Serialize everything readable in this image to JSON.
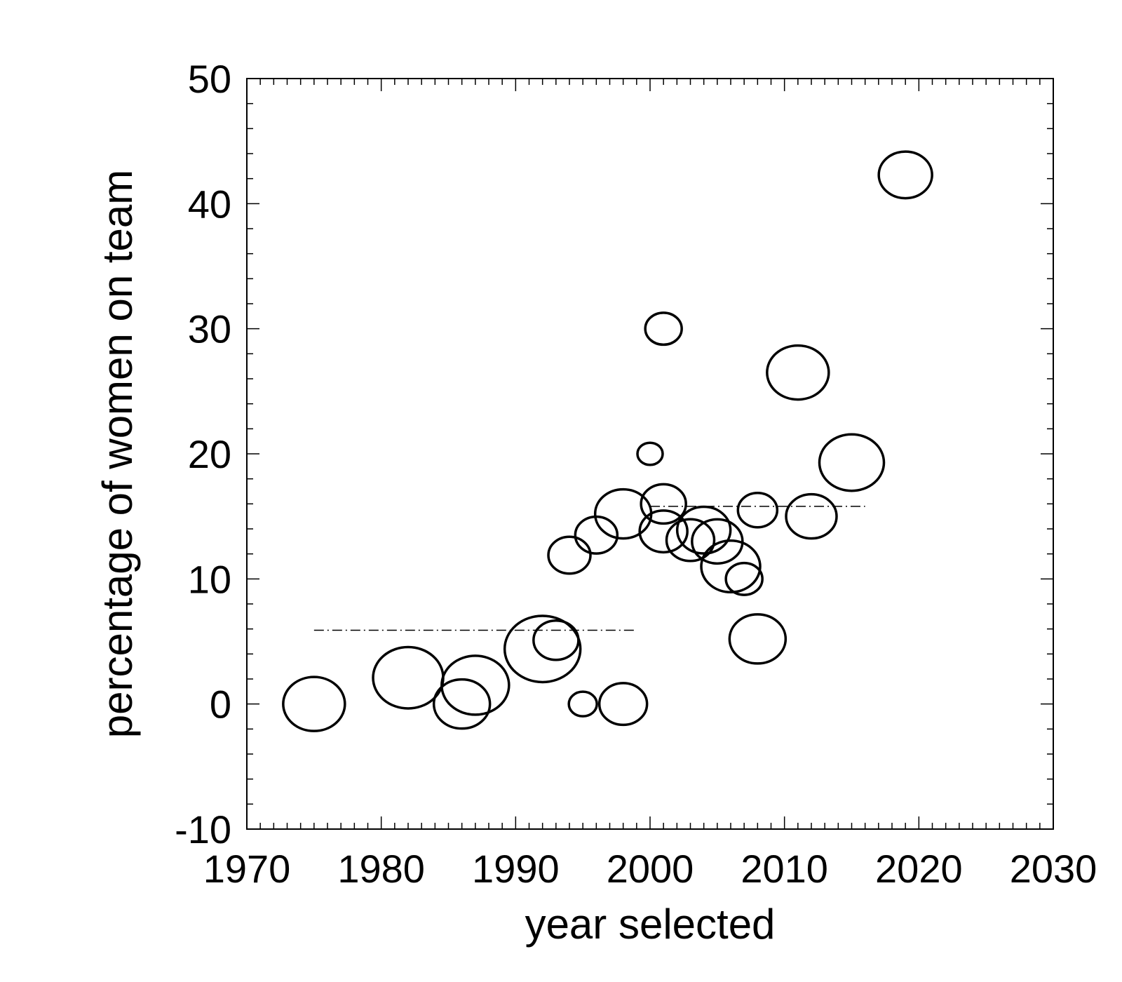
{
  "chart_data": {
    "type": "scatter",
    "xlabel": "year selected",
    "ylabel": "percentage of women on team",
    "xlim": [
      1970,
      2030
    ],
    "ylim": [
      -10,
      50
    ],
    "xticks": [
      "1970",
      "1980",
      "1990",
      "2000",
      "2010",
      "2020",
      "2030"
    ],
    "yticks": [
      "-10",
      "0",
      "10",
      "20",
      "30",
      "40",
      "50"
    ],
    "grid": false,
    "marker": "open-circle",
    "points": [
      {
        "x": 1975,
        "y": 0.0,
        "size": 2.2
      },
      {
        "x": 1982,
        "y": 2.1,
        "size": 2.5
      },
      {
        "x": 1986,
        "y": 0.0,
        "size": 2.0
      },
      {
        "x": 1987,
        "y": 1.5,
        "size": 2.4
      },
      {
        "x": 1992,
        "y": 4.4,
        "size": 2.7
      },
      {
        "x": 1993,
        "y": 5.1,
        "size": 1.6
      },
      {
        "x": 1994,
        "y": 11.9,
        "size": 1.5
      },
      {
        "x": 1995,
        "y": 0.0,
        "size": 1.0
      },
      {
        "x": 1996,
        "y": 13.5,
        "size": 1.5
      },
      {
        "x": 1998,
        "y": 15.2,
        "size": 2.0
      },
      {
        "x": 1998,
        "y": 0.0,
        "size": 1.7
      },
      {
        "x": 2000,
        "y": 20.0,
        "size": 0.9
      },
      {
        "x": 2001,
        "y": 30.0,
        "size": 1.3
      },
      {
        "x": 2001,
        "y": 16.0,
        "size": 1.6
      },
      {
        "x": 2001,
        "y": 13.8,
        "size": 1.7
      },
      {
        "x": 2003,
        "y": 13.1,
        "size": 1.7
      },
      {
        "x": 2004,
        "y": 13.9,
        "size": 1.9
      },
      {
        "x": 2005,
        "y": 13.0,
        "size": 1.8
      },
      {
        "x": 2006,
        "y": 11.0,
        "size": 2.1
      },
      {
        "x": 2007,
        "y": 10.0,
        "size": 1.3
      },
      {
        "x": 2008,
        "y": 15.5,
        "size": 1.4
      },
      {
        "x": 2008,
        "y": 5.2,
        "size": 2.0
      },
      {
        "x": 2011,
        "y": 26.5,
        "size": 2.2
      },
      {
        "x": 2012,
        "y": 15.0,
        "size": 1.8
      },
      {
        "x": 2015,
        "y": 19.3,
        "size": 2.3
      },
      {
        "x": 2019,
        "y": 42.3,
        "size": 1.9
      }
    ],
    "reference_lines": [
      {
        "x_start": 1975,
        "x_end": 1999,
        "y": 5.9,
        "style": "dash-dot"
      },
      {
        "x_start": 2000,
        "x_end": 2016,
        "y": 15.8,
        "style": "dash-dot"
      }
    ]
  }
}
